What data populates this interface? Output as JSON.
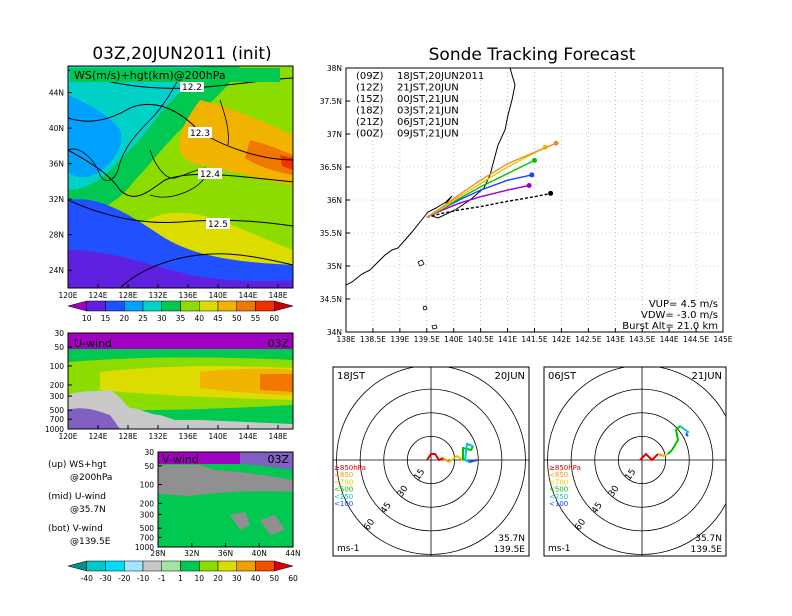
{
  "left_title": "03Z,20JUN2011 (init)",
  "right_title": "Sonde Tracking Forecast",
  "ws_panel": {
    "label": "WS(m/s)+hgt(km)@200hPa",
    "lat_ticks": [
      "44N",
      "40N",
      "36N",
      "32N",
      "28N",
      "24N"
    ],
    "lon_ticks": [
      "120E",
      "124E",
      "128E",
      "132E",
      "136E",
      "140E",
      "144E",
      "148E"
    ],
    "contour_labels": [
      "12.2",
      "12.3",
      "12.4",
      "12.5"
    ],
    "colorbar": [
      "10",
      "15",
      "20",
      "25",
      "30",
      "35",
      "40",
      "45",
      "50",
      "55",
      "60"
    ]
  },
  "u_panel": {
    "label": "U-wind",
    "time": "03Z",
    "p_ticks": [
      "30",
      "50",
      "100",
      "200",
      "300",
      "500",
      "700",
      "1000"
    ],
    "lon_ticks": [
      "120E",
      "124E",
      "128E",
      "132E",
      "136E",
      "140E",
      "144E",
      "148E"
    ]
  },
  "v_panel": {
    "label": "V-wind",
    "time": "03Z",
    "p_ticks": [
      "30",
      "50",
      "100",
      "200",
      "300",
      "500",
      "700",
      "1000"
    ],
    "lat_ticks": [
      "28N",
      "32N",
      "36N",
      "40N",
      "44N"
    ]
  },
  "legend_notes": [
    {
      "a": "(up) WS+hgt",
      "b": "@200hPa"
    },
    {
      "a": "(mid) U-wind",
      "b": "@35.7N"
    },
    {
      "a": "(bot) V-wind",
      "b": "@139.5E"
    }
  ],
  "bottom_colorbar": [
    "-40",
    "-30",
    "-20",
    "-10",
    "-1",
    "1",
    "10",
    "20",
    "30",
    "40",
    "50",
    "60"
  ],
  "track_map": {
    "lat_ticks": [
      "38N",
      "37.5N",
      "37N",
      "36.5N",
      "36N",
      "35.5N",
      "35N",
      "34.5N",
      "34N"
    ],
    "lon_ticks": [
      "138E",
      "138.5E",
      "139E",
      "139.5E",
      "140E",
      "140.5E",
      "141E",
      "141.5E",
      "142E",
      "142.5E",
      "143E",
      "143.5E",
      "144E",
      "144.5E",
      "145E"
    ],
    "launch_legend": [
      {
        "code": "(09Z)",
        "jst": "18JST,20JUN2011",
        "color": "#000000"
      },
      {
        "code": "(12Z)",
        "jst": "21JST,20JUN",
        "color": "#a000c8"
      },
      {
        "code": "(15Z)",
        "jst": "00JST,21JUN",
        "color": "#2040ff"
      },
      {
        "code": "(18Z)",
        "jst": "03JST,21JUN",
        "color": "#00c000"
      },
      {
        "code": "(21Z)",
        "jst": "06JST,21JUN",
        "color": "#e6c800"
      },
      {
        "code": "(00Z)",
        "jst": "09JST,21JUN",
        "color": "#f08c20"
      }
    ],
    "params": [
      "VUP= 4.5 m/s",
      "VDW= -3.0 m/s",
      "Burst Alt= 21.0 km"
    ]
  },
  "hodographs": [
    {
      "left": "18JST",
      "right": "20JUN",
      "legend": [
        "≥850hPa",
        "<850",
        "<700",
        "<500",
        "<250",
        "<100"
      ],
      "unit": "ms-1",
      "loc1": "35.7N",
      "loc2": "139.5E",
      "ring_labels": [
        "15",
        "30",
        "45",
        "60"
      ]
    },
    {
      "left": "06JST",
      "right": "21JUN",
      "legend": [
        "≥850hPa",
        "<850",
        "<700",
        "<500",
        "<250",
        "<100"
      ],
      "unit": "ms-1",
      "loc1": "35.7N",
      "loc2": "139.5E",
      "ring_labels": [
        "15",
        "30",
        "45",
        "60"
      ]
    }
  ],
  "colors": {
    "ws_scale": [
      "#a000c0",
      "#6020e0",
      "#2050ff",
      "#00a0ff",
      "#00d2c8",
      "#00c850",
      "#8cdc00",
      "#dcdc00",
      "#f0b400",
      "#f07800",
      "#f03000",
      "#c80000"
    ],
    "div_scale": [
      "#009090",
      "#00c8c8",
      "#00dcff",
      "#a0e6ff",
      "#c8c8c8",
      "#a0e6a0",
      "#00c850",
      "#8cdc00",
      "#dcdc00",
      "#f0a000",
      "#f05000",
      "#e00000"
    ],
    "layer_red": "#e00000",
    "layer_orange": "#f0a000",
    "layer_yellow": "#e6c800",
    "layer_green": "#00c000",
    "layer_cyan": "#00c8c8",
    "layer_blue": "#2040ff"
  },
  "chart_data": [
    {
      "type": "heatmap",
      "title": "WS(m/s)+hgt(km)@200hPa",
      "xlabel": "",
      "ylabel": "",
      "xlim": [
        120,
        150
      ],
      "ylim": [
        22,
        47
      ],
      "contour_levels_km": [
        12.2,
        12.3,
        12.4,
        12.5
      ],
      "colorbar_values": [
        10,
        15,
        20,
        25,
        30,
        35,
        40,
        45,
        50,
        55,
        60
      ]
    },
    {
      "type": "heatmap",
      "title": "U-wind",
      "xlim": [
        120,
        150
      ],
      "ylim_hPa": [
        1000,
        30
      ]
    },
    {
      "type": "heatmap",
      "title": "V-wind",
      "xlim": [
        28,
        44
      ],
      "ylim_hPa": [
        1000,
        30
      ]
    },
    {
      "type": "line",
      "title": "Sonde Tracking Forecast",
      "xlim": [
        138,
        145
      ],
      "ylim": [
        34,
        38
      ],
      "series": [
        {
          "name": "(09Z) 18JST,20JUN2011",
          "x": [
            139.5,
            139.8,
            140.1,
            140.5,
            141.0,
            141.5,
            141.8
          ],
          "y": [
            35.74,
            35.8,
            35.85,
            35.9,
            35.98,
            36.05,
            36.1
          ]
        },
        {
          "name": "(12Z) 21JST,20JUN",
          "x": [
            139.5,
            139.8,
            140.1,
            140.5,
            141.0,
            141.4
          ],
          "y": [
            35.74,
            35.85,
            35.95,
            36.05,
            36.15,
            36.22
          ]
        },
        {
          "name": "(15Z) 00JST,21JUN",
          "x": [
            139.5,
            139.8,
            140.1,
            140.5,
            141.0,
            141.45
          ],
          "y": [
            35.74,
            35.87,
            36.0,
            36.15,
            36.3,
            36.38
          ]
        },
        {
          "name": "(18Z) 03JST,21JUN",
          "x": [
            139.5,
            139.8,
            140.1,
            140.5,
            141.0,
            141.5
          ],
          "y": [
            35.74,
            35.87,
            36.02,
            36.2,
            36.4,
            36.6
          ]
        },
        {
          "name": "(21Z) 06JST,21JUN",
          "x": [
            139.5,
            139.8,
            140.1,
            140.5,
            141.0,
            141.7
          ],
          "y": [
            35.74,
            35.88,
            36.05,
            36.25,
            36.5,
            36.8
          ]
        },
        {
          "name": "(00Z) 09JST,21JUN",
          "x": [
            139.5,
            139.8,
            140.1,
            140.5,
            141.0,
            141.9
          ],
          "y": [
            35.74,
            35.9,
            36.08,
            36.3,
            36.55,
            36.86
          ]
        }
      ]
    }
  ]
}
